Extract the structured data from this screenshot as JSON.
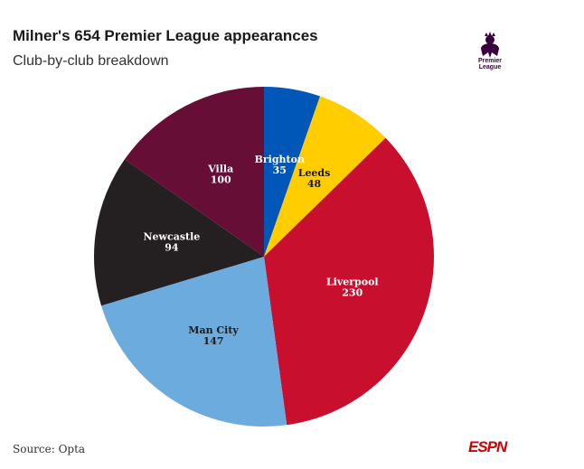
{
  "header": {
    "title": "Milner's 654 Premier League appearances",
    "subtitle": "Club-by-club breakdown"
  },
  "logo": {
    "icon": "premier-league-lion-icon",
    "text_line1": "Premier",
    "text_line2": "League"
  },
  "footer": {
    "source": "Source: Opta",
    "brand": "ESPN"
  },
  "chart_data": {
    "type": "pie",
    "total": 654,
    "start_angle_deg": 0,
    "direction": "clockwise",
    "slices": [
      {
        "label": "Brighton",
        "value": 35,
        "color": "#0057b8",
        "text_color": "#ffffff"
      },
      {
        "label": "Leeds",
        "value": 48,
        "color": "#ffcd00",
        "text_color": "#1a1a1a"
      },
      {
        "label": "Liverpool",
        "value": 230,
        "color": "#c8102e",
        "text_color": "#ffffff"
      },
      {
        "label": "Man City",
        "value": 147,
        "color": "#6cabdd",
        "text_color": "#1a1a1a"
      },
      {
        "label": "Newcastle",
        "value": 94,
        "color": "#241f20",
        "text_color": "#ffffff"
      },
      {
        "label": "Villa",
        "value": 100,
        "color": "#670e36",
        "text_color": "#ffffff"
      }
    ]
  }
}
